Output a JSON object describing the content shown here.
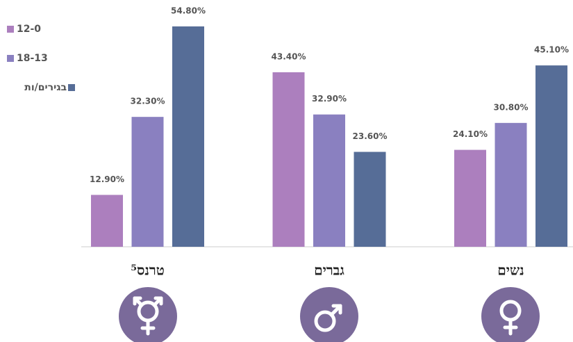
{
  "chart_data": {
    "type": "bar",
    "categories": [
      "טרנס⁵",
      "גברים",
      "נשים"
    ],
    "series": [
      {
        "name": "12-0",
        "color": "#ac7fbe",
        "values": [
          12.9,
          43.4,
          24.1
        ],
        "value_labels": [
          "12.90%",
          "43.40%",
          "24.10%"
        ]
      },
      {
        "name": "18-13",
        "color": "#8a80c0",
        "values": [
          32.3,
          32.9,
          30.8
        ],
        "value_labels": [
          "32.30%",
          "32.90%",
          "30.80%"
        ]
      },
      {
        "name": "בגירים/ות",
        "color": "#566d97",
        "values": [
          54.8,
          23.6,
          45.1
        ],
        "value_labels": [
          "54.80%",
          "23.60%",
          "45.10%"
        ]
      }
    ],
    "legend": "top-left"
  }
}
